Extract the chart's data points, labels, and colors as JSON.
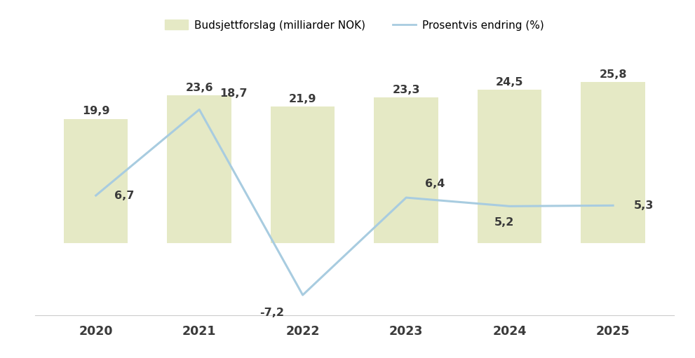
{
  "years": [
    2020,
    2021,
    2022,
    2023,
    2024,
    2025
  ],
  "budget_values": [
    19.9,
    23.6,
    21.9,
    23.3,
    24.5,
    25.8
  ],
  "budget_labels": [
    "19,9",
    "23,6",
    "21,9",
    "23,3",
    "24,5",
    "25,8"
  ],
  "pct_change": [
    6.7,
    18.7,
    -7.2,
    6.4,
    5.2,
    5.3
  ],
  "pct_labels": [
    "6,7",
    "18,7",
    "-7,2",
    "6,4",
    "5,2",
    "5,3"
  ],
  "bar_color": "#e5e9c5",
  "line_color": "#a8cce0",
  "text_color": "#3a3a3a",
  "axis_color": "#cccccc",
  "legend_bar_label": "Budsjettforslag (milliarder NOK)",
  "legend_line_label": "Prosentvis endring (%)",
  "bar_width": 0.62,
  "ylim_bar": [
    0,
    32
  ],
  "ylim_line": [
    -14,
    28
  ],
  "background_color": "#ffffff",
  "bar_fontsize": 11.5,
  "line_fontsize": 11.5,
  "legend_fontsize": 11,
  "tick_fontsize": 12.5,
  "line_label_x_offsets": [
    0.18,
    0.2,
    -0.18,
    0.18,
    -0.05,
    0.2
  ],
  "line_label_y_offsets": [
    0.0,
    1.5,
    -1.8,
    1.2,
    -1.5,
    0.0
  ],
  "line_label_ha": [
    "left",
    "left",
    "right",
    "left",
    "center",
    "left"
  ],
  "line_label_va": [
    "center",
    "bottom",
    "top",
    "bottom",
    "top",
    "center"
  ]
}
